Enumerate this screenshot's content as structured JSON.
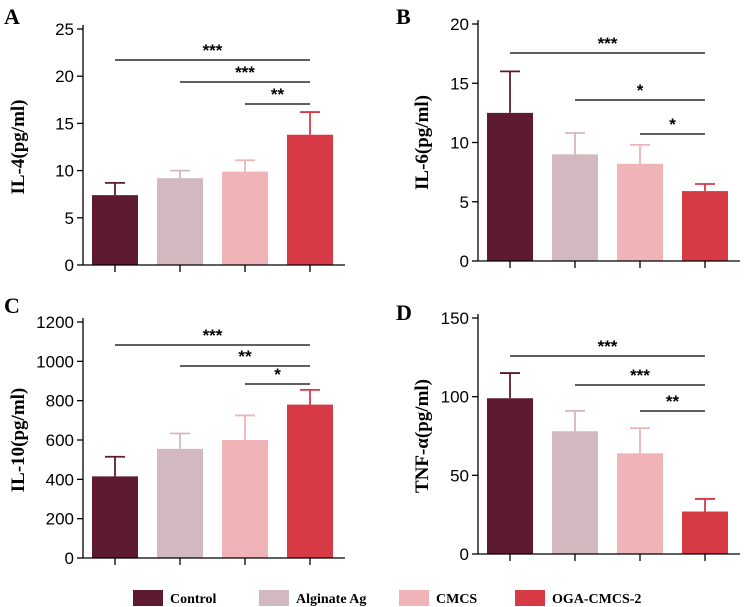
{
  "legend": {
    "items": [
      "Control",
      "Alginate Ag",
      "CMCS",
      "OGA-CMCS-2"
    ],
    "colors": [
      "#5e1a30",
      "#d2b9bf",
      "#f0b4b8",
      "#d63b45"
    ]
  },
  "chart_data": [
    {
      "type": "bar",
      "panel": "A",
      "ylabel": "IL-4(pg/ml)",
      "ylim": [
        0,
        25
      ],
      "yticks": [
        0,
        5,
        10,
        15,
        20,
        25
      ],
      "categories": [
        "Control",
        "Alginate Ag",
        "CMCS",
        "OGA-CMCS-2"
      ],
      "values": [
        7.4,
        9.2,
        9.9,
        13.8
      ],
      "errors": [
        1.3,
        0.8,
        1.2,
        2.4
      ],
      "significance": [
        {
          "from": 0,
          "to": 3,
          "label": "***"
        },
        {
          "from": 1,
          "to": 3,
          "label": "***"
        },
        {
          "from": 2,
          "to": 3,
          "label": "**"
        }
      ]
    },
    {
      "type": "bar",
      "panel": "B",
      "ylabel": "IL-6(pg/ml)",
      "ylim": [
        0,
        20
      ],
      "yticks": [
        0,
        5,
        10,
        15,
        20
      ],
      "categories": [
        "Control",
        "Alginate Ag",
        "CMCS",
        "OGA-CMCS-2"
      ],
      "values": [
        12.5,
        9.0,
        8.2,
        5.9
      ],
      "errors": [
        3.5,
        1.8,
        1.6,
        0.6
      ],
      "significance": [
        {
          "from": 0,
          "to": 3,
          "label": "***"
        },
        {
          "from": 1,
          "to": 3,
          "label": "*"
        },
        {
          "from": 2,
          "to": 3,
          "label": "*"
        }
      ]
    },
    {
      "type": "bar",
      "panel": "C",
      "ylabel": "IL-10(pg/ml)",
      "ylim": [
        0,
        1200
      ],
      "yticks": [
        0,
        200,
        400,
        600,
        800,
        1000,
        1200
      ],
      "categories": [
        "Control",
        "Alginate Ag",
        "CMCS",
        "OGA-CMCS-2"
      ],
      "values": [
        415,
        555,
        600,
        780
      ],
      "errors": [
        100,
        78,
        125,
        75
      ],
      "significance": [
        {
          "from": 0,
          "to": 3,
          "label": "***"
        },
        {
          "from": 1,
          "to": 3,
          "label": "**"
        },
        {
          "from": 2,
          "to": 3,
          "label": "*"
        }
      ]
    },
    {
      "type": "bar",
      "panel": "D",
      "ylabel": "TNF-α(pg/ml)",
      "ylim": [
        0,
        150
      ],
      "yticks": [
        0,
        50,
        100,
        150
      ],
      "categories": [
        "Control",
        "Alginate Ag",
        "CMCS",
        "OGA-CMCS-2"
      ],
      "values": [
        99,
        78,
        64,
        27
      ],
      "errors": [
        16,
        13,
        16,
        8
      ],
      "significance": [
        {
          "from": 0,
          "to": 3,
          "label": "***"
        },
        {
          "from": 1,
          "to": 3,
          "label": "***"
        },
        {
          "from": 2,
          "to": 3,
          "label": "**"
        }
      ]
    }
  ]
}
